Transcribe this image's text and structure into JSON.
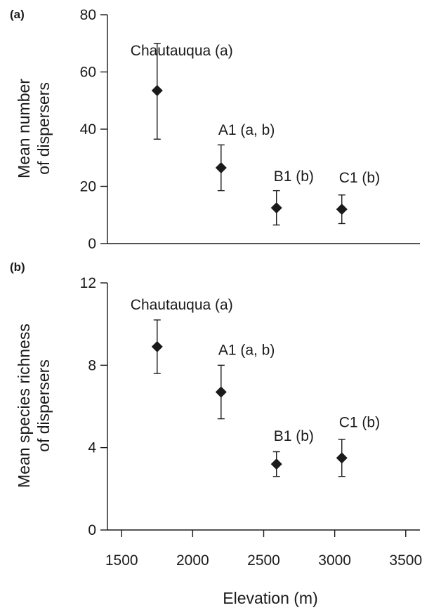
{
  "chart_data": [
    {
      "type": "scatter",
      "panel_label": "(a)",
      "xlabel": "",
      "ylabel": "Mean number\nof dispersers",
      "xlim": [
        1400,
        3600
      ],
      "ylim": [
        0,
        80
      ],
      "yticks": [
        0,
        20,
        40,
        60,
        80
      ],
      "points": [
        {
          "name": "Chautauqua",
          "group": "(a)",
          "x": 1750,
          "y": 53.5,
          "low": 36.5,
          "high": 70
        },
        {
          "name": "A1",
          "group": "(a, b)",
          "x": 2200,
          "y": 26.5,
          "low": 18.5,
          "high": 34.5
        },
        {
          "name": "B1",
          "group": "(b)",
          "x": 2590,
          "y": 12.5,
          "low": 6.5,
          "high": 18.5
        },
        {
          "name": "C1",
          "group": "(b)",
          "x": 3050,
          "y": 12,
          "low": 7,
          "high": 17
        }
      ]
    },
    {
      "type": "scatter",
      "panel_label": "(b)",
      "xlabel": "Elevation (m)",
      "ylabel": "Mean species richness\nof dispersers",
      "xlim": [
        1400,
        3600
      ],
      "ylim": [
        0,
        12
      ],
      "yticks": [
        0,
        4,
        8,
        12
      ],
      "xticks": [
        1500,
        2000,
        2500,
        3000,
        3500
      ],
      "points": [
        {
          "name": "Chautauqua",
          "group": "(a)",
          "x": 1750,
          "y": 8.9,
          "low": 7.6,
          "high": 10.2
        },
        {
          "name": "A1",
          "group": "(a, b)",
          "x": 2200,
          "y": 6.7,
          "low": 5.4,
          "high": 8.0
        },
        {
          "name": "B1",
          "group": "(b)",
          "x": 2590,
          "y": 3.2,
          "low": 2.6,
          "high": 3.8
        },
        {
          "name": "C1",
          "group": "(b)",
          "x": 3050,
          "y": 3.5,
          "low": 2.6,
          "high": 4.4
        }
      ]
    }
  ]
}
